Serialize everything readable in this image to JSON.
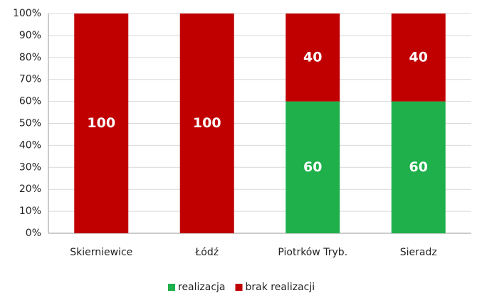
{
  "chart_data": {
    "type": "stacked_bar",
    "categories": [
      "Skierniewice",
      "Łódź",
      "Piotrków Tryb.",
      "Sieradz"
    ],
    "series": [
      {
        "name": "realizacja",
        "color": "#1fb04c",
        "values": [
          0,
          0,
          60,
          60
        ]
      },
      {
        "name": "brak realizacji",
        "color": "#c00000",
        "values": [
          100,
          100,
          40,
          40
        ]
      }
    ],
    "ylim": [
      0,
      100
    ],
    "yticks": [
      {
        "value": 0,
        "label": "0%"
      },
      {
        "value": 10,
        "label": "10%"
      },
      {
        "value": 20,
        "label": "20%"
      },
      {
        "value": 30,
        "label": "30%"
      },
      {
        "value": 40,
        "label": "40%"
      },
      {
        "value": 50,
        "label": "50%"
      },
      {
        "value": 60,
        "label": "60%"
      },
      {
        "value": 70,
        "label": "70%"
      },
      {
        "value": 80,
        "label": "80%"
      },
      {
        "value": 90,
        "label": "90%"
      },
      {
        "value": 100,
        "label": "100%"
      }
    ],
    "grid": true,
    "legend": "bottom"
  }
}
